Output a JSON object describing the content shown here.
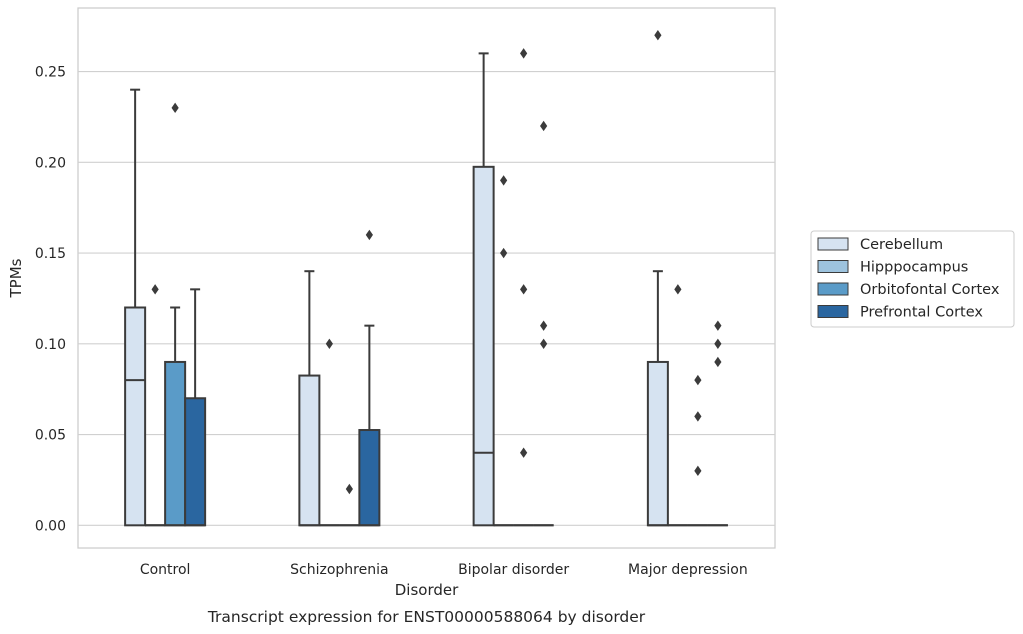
{
  "chart_data": {
    "type": "boxplot",
    "xlabel": "Disorder",
    "ylabel": "TPMs",
    "caption": "Transcript expression for ENST00000588064 by disorder",
    "ylim": [
      -0.0125,
      0.285
    ],
    "yticks": [
      0.0,
      0.05,
      0.1,
      0.15,
      0.2,
      0.25
    ],
    "ytick_labels": [
      "0.00",
      "0.05",
      "0.10",
      "0.15",
      "0.20",
      "0.25"
    ],
    "grid": true,
    "legend_position": "right",
    "categories": [
      "Control",
      "Schizophrenia",
      "Bipolar disorder",
      "Major depression"
    ],
    "series": [
      {
        "name": "Cerebellum",
        "color": "#d6e3f1",
        "boxes": [
          {
            "q1": 0.0,
            "median": 0.08,
            "q3": 0.12,
            "whisker_low": 0.0,
            "whisker_high": 0.24,
            "outliers": []
          },
          {
            "q1": 0.0,
            "median": 0.0,
            "q3": 0.0825,
            "whisker_low": 0.0,
            "whisker_high": 0.14,
            "outliers": []
          },
          {
            "q1": 0.0,
            "median": 0.04,
            "q3": 0.1975,
            "whisker_low": 0.0,
            "whisker_high": 0.26,
            "outliers": []
          },
          {
            "q1": 0.0,
            "median": 0.0,
            "q3": 0.09,
            "whisker_low": 0.0,
            "whisker_high": 0.14,
            "outliers": [
              0.27
            ]
          }
        ]
      },
      {
        "name": "Hipppocampus",
        "color": "#9dc3de",
        "boxes": [
          {
            "q1": 0.0,
            "median": 0.0,
            "q3": 0.0,
            "whisker_low": 0.0,
            "whisker_high": 0.0,
            "outliers": [
              0.13
            ]
          },
          {
            "q1": 0.0,
            "median": 0.0,
            "q3": 0.0,
            "whisker_low": 0.0,
            "whisker_high": 0.0,
            "outliers": [
              0.1
            ]
          },
          {
            "q1": 0.0,
            "median": 0.0,
            "q3": 0.0,
            "whisker_low": 0.0,
            "whisker_high": 0.0,
            "outliers": [
              0.19,
              0.15
            ]
          },
          {
            "q1": 0.0,
            "median": 0.0,
            "q3": 0.0,
            "whisker_low": 0.0,
            "whisker_high": 0.0,
            "outliers": [
              0.13
            ]
          }
        ]
      },
      {
        "name": "Orbitofontal Cortex",
        "color": "#5a9bc8",
        "boxes": [
          {
            "q1": 0.0,
            "median": 0.0,
            "q3": 0.09,
            "whisker_low": 0.0,
            "whisker_high": 0.12,
            "outliers": [
              0.23
            ]
          },
          {
            "q1": 0.0,
            "median": 0.0,
            "q3": 0.0,
            "whisker_low": 0.0,
            "whisker_high": 0.0,
            "outliers": [
              0.02
            ]
          },
          {
            "q1": 0.0,
            "median": 0.0,
            "q3": 0.0,
            "whisker_low": 0.0,
            "whisker_high": 0.0,
            "outliers": [
              0.26,
              0.13,
              0.04
            ]
          },
          {
            "q1": 0.0,
            "median": 0.0,
            "q3": 0.0,
            "whisker_low": 0.0,
            "whisker_high": 0.0,
            "outliers": [
              0.08,
              0.06,
              0.03
            ]
          }
        ]
      },
      {
        "name": "Prefrontal Cortex",
        "color": "#2a66a0",
        "boxes": [
          {
            "q1": 0.0,
            "median": 0.0,
            "q3": 0.07,
            "whisker_low": 0.0,
            "whisker_high": 0.13,
            "outliers": []
          },
          {
            "q1": 0.0,
            "median": 0.0,
            "q3": 0.0525,
            "whisker_low": 0.0,
            "whisker_high": 0.11,
            "outliers": [
              0.16
            ]
          },
          {
            "q1": 0.0,
            "median": 0.0,
            "q3": 0.0,
            "whisker_low": 0.0,
            "whisker_high": 0.0,
            "outliers": [
              0.22,
              0.11,
              0.1
            ]
          },
          {
            "q1": 0.0,
            "median": 0.0,
            "q3": 0.0,
            "whisker_low": 0.0,
            "whisker_high": 0.0,
            "outliers": [
              0.11,
              0.1,
              0.09
            ]
          }
        ]
      }
    ]
  }
}
